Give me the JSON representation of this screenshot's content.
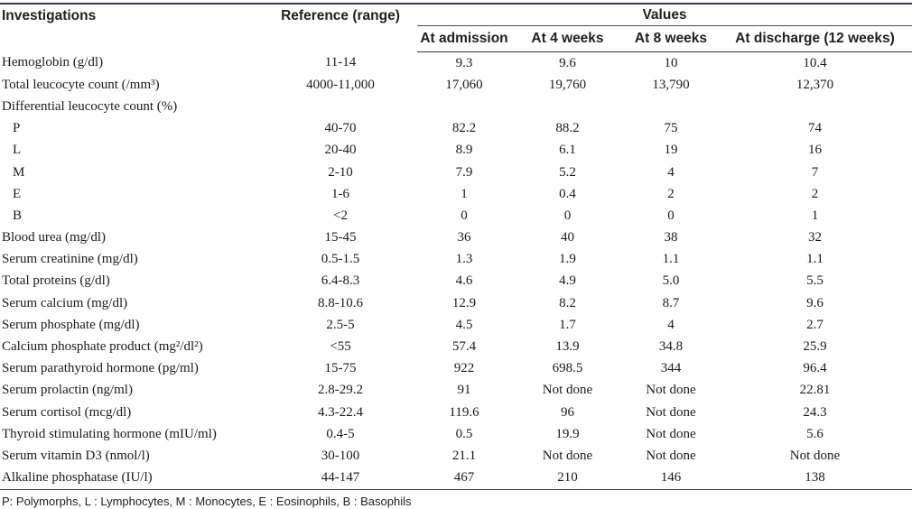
{
  "header": {
    "investigations": "Investigations",
    "reference": "Reference (range)",
    "values": "Values",
    "columns": [
      "At admission",
      "At 4 weeks",
      "At 8 weeks",
      "At discharge (12 weeks)"
    ]
  },
  "rows": [
    {
      "name": "Hemoglobin (g/dl)",
      "ref": "11-14",
      "v": [
        "9.3",
        "9.6",
        "10",
        "10.4"
      ]
    },
    {
      "name": "Total leucocyte count (/mm³)",
      "ref": "4000-11,000",
      "v": [
        "17,060",
        "19,760",
        "13,790",
        "12,370"
      ]
    },
    {
      "name": "Differential leucocyte count (%)",
      "ref": "",
      "v": [
        "",
        "",
        "",
        ""
      ]
    },
    {
      "name": "P",
      "ref": "40-70",
      "v": [
        "82.2",
        "88.2",
        "75",
        "74"
      ]
    },
    {
      "name": "L",
      "ref": "20-40",
      "v": [
        "8.9",
        "6.1",
        "19",
        "16"
      ]
    },
    {
      "name": "M",
      "ref": "2-10",
      "v": [
        "7.9",
        "5.2",
        "4",
        "7"
      ]
    },
    {
      "name": "E",
      "ref": "1-6",
      "v": [
        "1",
        "0.4",
        "2",
        "2"
      ]
    },
    {
      "name": "B",
      "ref": "<2",
      "v": [
        "0",
        "0",
        "0",
        "1"
      ]
    },
    {
      "name": "Blood urea (mg/dl)",
      "ref": "15-45",
      "v": [
        "36",
        "40",
        "38",
        "32"
      ]
    },
    {
      "name": "Serum creatinine (mg/dl)",
      "ref": "0.5-1.5",
      "v": [
        "1.3",
        "1.9",
        "1.1",
        "1.1"
      ]
    },
    {
      "name": "Total proteins (g/dl)",
      "ref": "6.4-8.3",
      "v": [
        "4.6",
        "4.9",
        "5.0",
        "5.5"
      ]
    },
    {
      "name": "Serum calcium (mg/dl)",
      "ref": "8.8-10.6",
      "v": [
        "12.9",
        "8.2",
        "8.7",
        "9.6"
      ]
    },
    {
      "name": "Serum phosphate (mg/dl)",
      "ref": "2.5-5",
      "v": [
        "4.5",
        "1.7",
        "4",
        "2.7"
      ]
    },
    {
      "name": "Calcium phosphate product (mg²/dl²)",
      "ref": "<55",
      "v": [
        "57.4",
        "13.9",
        "34.8",
        "25.9"
      ]
    },
    {
      "name": "Serum parathyroid hormone (pg/ml)",
      "ref": "15-75",
      "v": [
        "922",
        "698.5",
        "344",
        "96.4"
      ]
    },
    {
      "name": "Serum prolactin (ng/ml)",
      "ref": "2.8-29.2",
      "v": [
        "91",
        "Not done",
        "Not done",
        "22.81"
      ]
    },
    {
      "name": "Serum cortisol (mcg/dl)",
      "ref": "4.3-22.4",
      "v": [
        "119.6",
        "96",
        "Not done",
        "24.3"
      ]
    },
    {
      "name": "Thyroid stimulating hormone (mIU/ml)",
      "ref": "0.4-5",
      "v": [
        "0.5",
        "19.9",
        "Not done",
        "5.6"
      ]
    },
    {
      "name": "Serum vitamin D3 (nmol/l)",
      "ref": "30-100",
      "v": [
        "21.1",
        "Not done",
        "Not done",
        "Not done"
      ]
    },
    {
      "name": "Alkaline phosphatase (IU/l)",
      "ref": "44-147",
      "v": [
        "467",
        "210",
        "146",
        "138"
      ]
    }
  ],
  "footnote": "P: Polymorphs, L : Lymphocytes, M : Monocytes, E : Eosinophils, B : Basophils"
}
